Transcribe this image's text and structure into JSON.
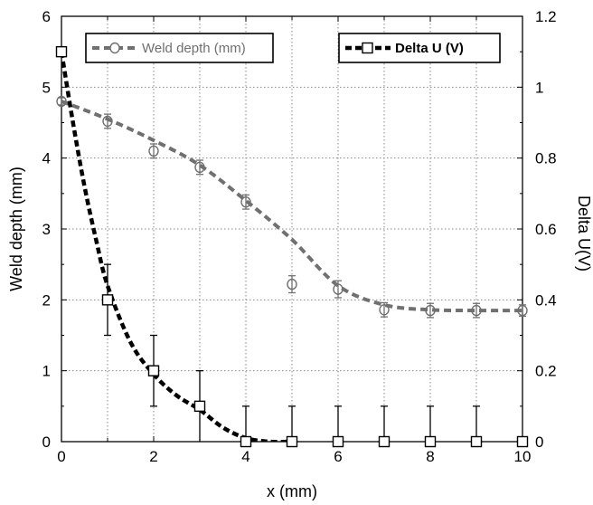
{
  "chart_data": {
    "type": "line",
    "xlabel": "x (mm)",
    "ylabel": "Weld depth (mm)",
    "y2label": "Delta U(V)",
    "xlim": [
      0,
      10
    ],
    "ylim": [
      0,
      6
    ],
    "y2lim": [
      0,
      1.2
    ],
    "grid": true,
    "x_ticks": [
      "0",
      "2",
      "4",
      "6",
      "8",
      "10"
    ],
    "y_ticks": [
      "0",
      "1",
      "2",
      "3",
      "4",
      "5",
      "6"
    ],
    "y2_ticks": [
      "0",
      "0.2",
      "0.4",
      "0.6",
      "0.8",
      "1",
      "1.2"
    ],
    "legend_placement": "top",
    "series": [
      {
        "name": "Weld depth (mm)",
        "axis": "left",
        "marker": "circle",
        "color": "#707070",
        "x": [
          0,
          1,
          2,
          3,
          4,
          5,
          6,
          7,
          8,
          9,
          10
        ],
        "y": [
          4.8,
          4.52,
          4.1,
          3.87,
          3.38,
          2.22,
          2.15,
          1.86,
          1.85,
          1.85,
          1.85
        ],
        "error": [
          0.05,
          0.1,
          0.1,
          0.1,
          0.1,
          0.12,
          0.12,
          0.1,
          0.1,
          0.1,
          0.08
        ],
        "trend": [
          [
            0,
            4.8
          ],
          [
            1,
            4.55
          ],
          [
            2,
            4.25
          ],
          [
            3,
            3.9
          ],
          [
            4,
            3.4
          ],
          [
            5,
            2.85
          ],
          [
            6,
            2.2
          ],
          [
            7,
            1.93
          ],
          [
            8,
            1.86
          ],
          [
            9,
            1.85
          ],
          [
            10,
            1.85
          ]
        ]
      },
      {
        "name": "Delta U (V)",
        "axis": "right",
        "marker": "square",
        "color": "#000000",
        "x": [
          0,
          1,
          2,
          3,
          4,
          5,
          6,
          7,
          8,
          9,
          10
        ],
        "y": [
          1.1,
          0.4,
          0.2,
          0.1,
          0,
          0,
          0,
          0,
          0,
          0,
          0
        ],
        "error": [
          0,
          0.1,
          0.1,
          0.1,
          0.1,
          0.1,
          0.1,
          0.1,
          0.1,
          0.1,
          0
        ],
        "trend": [
          [
            0,
            1.1
          ],
          [
            0.25,
            0.9
          ],
          [
            0.5,
            0.72
          ],
          [
            0.75,
            0.57
          ],
          [
            1,
            0.44
          ],
          [
            1.5,
            0.28
          ],
          [
            2,
            0.19
          ],
          [
            2.5,
            0.13
          ],
          [
            3,
            0.09
          ],
          [
            3.5,
            0.04
          ],
          [
            4,
            0.01
          ],
          [
            4.5,
            0
          ],
          [
            5,
            0
          ]
        ]
      }
    ]
  }
}
